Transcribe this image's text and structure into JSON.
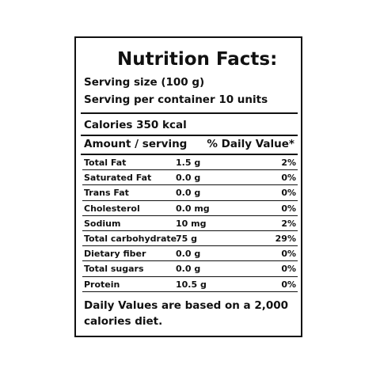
{
  "title": "Nutrition Facts:",
  "serving_size": "Serving size (100 g)",
  "servings_per_container": "Serving per container 10 units",
  "calories": "Calories 350 kcal",
  "table_header": {
    "amount": "Amount / serving",
    "daily_value": "% Daily Value*"
  },
  "nutrients": [
    {
      "name": "Total Fat",
      "amount": "1.5 g",
      "dv": "2%"
    },
    {
      "name": "Saturated Fat",
      "amount": "0.0 g",
      "dv": "0%"
    },
    {
      "name": "Trans Fat",
      "amount": "0.0 g",
      "dv": "0%"
    },
    {
      "name": "Cholesterol",
      "amount": "0.0 mg",
      "dv": "0%"
    },
    {
      "name": "Sodium",
      "amount": "10 mg",
      "dv": "2%"
    },
    {
      "name": "Total carbohydrate",
      "amount": "75 g",
      "dv": "29%"
    },
    {
      "name": "Dietary fiber",
      "amount": "0.0 g",
      "dv": "0%"
    },
    {
      "name": "Total sugars",
      "amount": "0.0 g",
      "dv": "0%"
    },
    {
      "name": "Protein",
      "amount": "10.5 g",
      "dv": "0%"
    }
  ],
  "footnote": "Daily Values are based on a 2,000 calories diet."
}
